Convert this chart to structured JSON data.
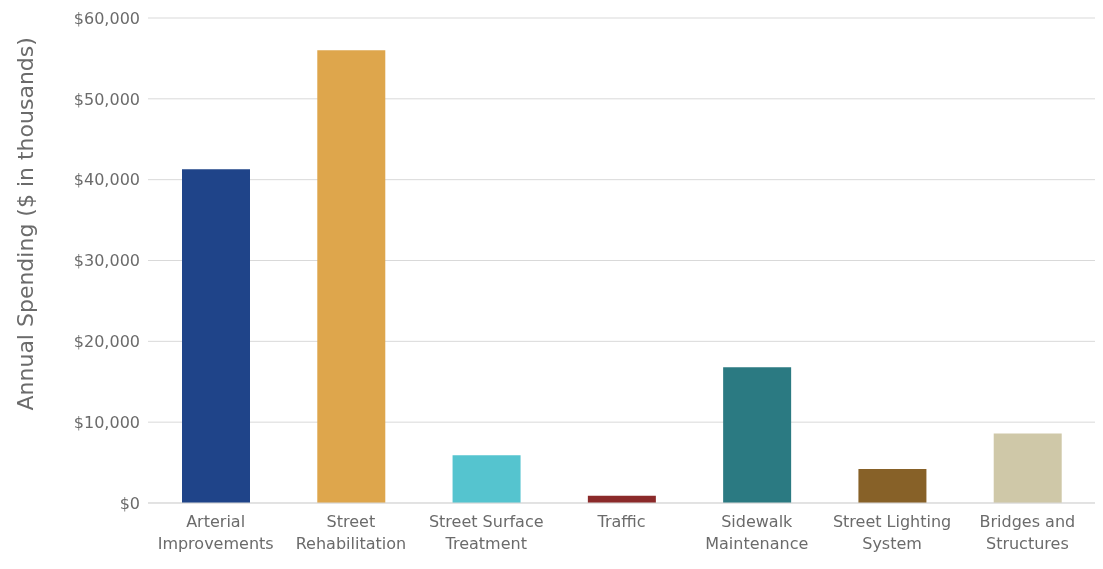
{
  "chart_data": {
    "type": "bar",
    "ylabel": "Annual Spending ($ in thousands)",
    "categories": [
      "Arterial Improvements",
      "Street Rehabilitation",
      "Street Surface Treatment",
      "Traffic",
      "Sidewalk Maintenance",
      "Street Lighting System",
      "Bridges and Structures"
    ],
    "values": [
      41300,
      56000,
      5900,
      900,
      16800,
      4200,
      8600
    ],
    "colors": [
      "#1f4489",
      "#dea64c",
      "#55c4cf",
      "#8b2a2a",
      "#2b7a82",
      "#876128",
      "#cfc8a8"
    ],
    "ylim": [
      0,
      60000
    ],
    "yticks": [
      {
        "value": 0,
        "label": "$0"
      },
      {
        "value": 10000,
        "label": "$10,000"
      },
      {
        "value": 20000,
        "label": "$20,000"
      },
      {
        "value": 30000,
        "label": "$30,000"
      },
      {
        "value": 40000,
        "label": "$40,000"
      },
      {
        "value": 50000,
        "label": "$50,000"
      },
      {
        "value": 60000,
        "label": "$60,000"
      }
    ],
    "grid": "y"
  }
}
